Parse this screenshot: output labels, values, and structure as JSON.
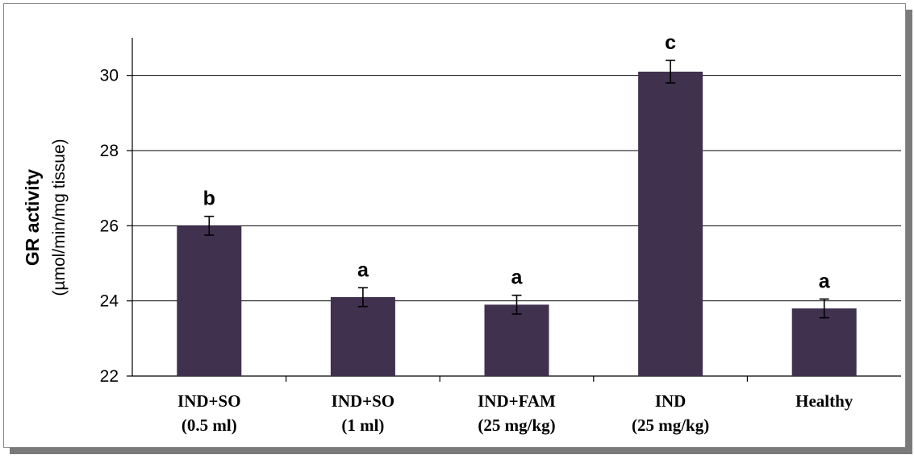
{
  "chart_data": {
    "type": "bar",
    "ylabel": "GR activity",
    "ylabel_unit": "(µmol/min/mg tissue)",
    "ylim": [
      22,
      31
    ],
    "yticks": [
      22,
      24,
      26,
      28,
      30
    ],
    "grid": true,
    "colors": {
      "bar": "#40314f",
      "grid": "#000000"
    },
    "categories": [
      {
        "line1": "IND+SO",
        "line2": "(0.5 ml)"
      },
      {
        "line1": "IND+SO",
        "line2": "(1 ml)"
      },
      {
        "line1": "IND+FAM",
        "line2": "(25 mg/kg)"
      },
      {
        "line1": "IND",
        "line2": "(25 mg/kg)"
      },
      {
        "line1": "Healthy",
        "line2": ""
      }
    ],
    "values": [
      26.0,
      24.1,
      23.9,
      30.1,
      23.8
    ],
    "errors": [
      0.25,
      0.25,
      0.25,
      0.3,
      0.25
    ],
    "letters": [
      "b",
      "a",
      "a",
      "c",
      "a"
    ]
  }
}
